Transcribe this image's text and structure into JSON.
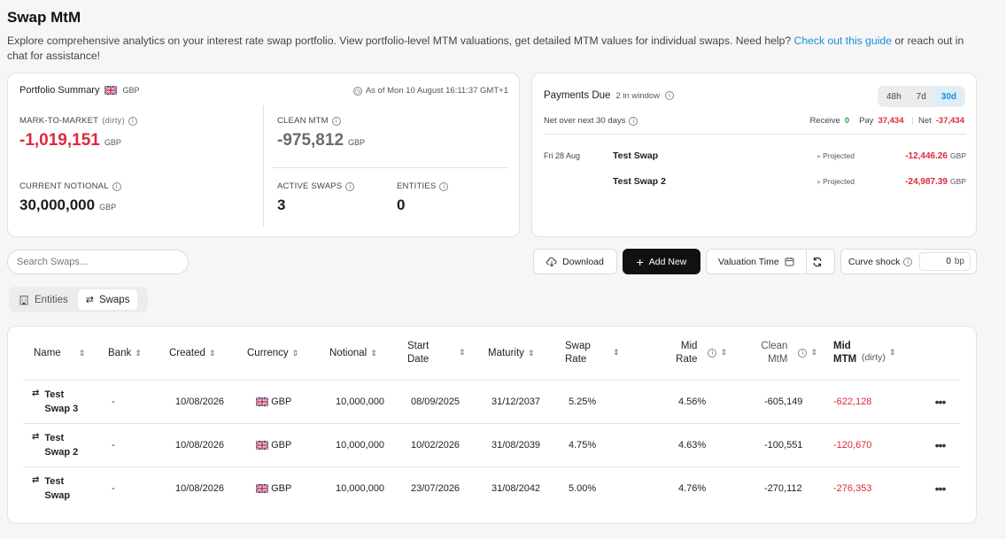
{
  "page": {
    "title": "Swap MtM",
    "desc_before": "Explore comprehensive analytics on your interest rate swap portfolio. View portfolio-level MTM valuations, get detailed MTM values for individual swaps. Need help? ",
    "desc_link": "Check out this guide",
    "desc_after": " or reach out in chat for assistance!"
  },
  "summary": {
    "title": "Portfolio Summary",
    "currency": "GBP",
    "as_of": "As of Mon 10 August 16:11:37 GMT+1",
    "mtm_label": "MARK-TO-MARKET",
    "mtm_sub": "(dirty)",
    "mtm_value": "-1,019,151",
    "clean_label": "CLEAN MTM",
    "clean_value": "-975,812",
    "notional_label": "CURRENT NOTIONAL",
    "notional_value": "30,000,000",
    "active_label": "ACTIVE SWAPS",
    "active_value": "3",
    "entities_label": "ENTITIES",
    "entities_value": "0",
    "ccy": "GBP"
  },
  "payments": {
    "title": "Payments Due",
    "window": "2 in window",
    "tabs": [
      "48h",
      "7d",
      "30d"
    ],
    "net_label": "Net over next 30 days",
    "receive_label": "Receive",
    "receive_value": "0",
    "pay_label": "Pay",
    "pay_value": "37,434",
    "net2_label": "Net",
    "net2_value": "-37,434",
    "rows": [
      {
        "date": "Fri 28 Aug",
        "name": "Test Swap",
        "status": "Projected",
        "amount": "-12,446.26",
        "ccy": "GBP"
      },
      {
        "date": "",
        "name": "Test Swap 2",
        "status": "Projected",
        "amount": "-24,987.39",
        "ccy": "GBP"
      }
    ]
  },
  "toolbar": {
    "search_placeholder": "Search Swaps...",
    "download": "Download",
    "add_new": "Add New",
    "valuation_time": "Valuation Time",
    "curve_shock": "Curve shock",
    "shock_value": "0",
    "shock_unit": "bp"
  },
  "tabs": {
    "entities": "Entities",
    "swaps": "Swaps"
  },
  "table": {
    "headers": [
      "Name",
      "Bank",
      "Created",
      "Currency",
      "Notional",
      "Start Date",
      "Maturity",
      "Swap Rate",
      "Mid Rate",
      "Clean MtM",
      "Mid MTM",
      "(dirty)"
    ],
    "rows": [
      {
        "name": "Test Swap 3",
        "bank": "-",
        "created": "10/08/2026",
        "ccy": "GBP",
        "notional": "10,000,000",
        "start": "08/09/2025",
        "maturity": "31/12/2037",
        "swap_rate": "5.25%",
        "mid_rate": "4.56%",
        "clean": "-605,149",
        "mid": "-622,128"
      },
      {
        "name": "Test Swap 2",
        "bank": "-",
        "created": "10/08/2026",
        "ccy": "GBP",
        "notional": "10,000,000",
        "start": "10/02/2026",
        "maturity": "31/08/2039",
        "swap_rate": "4.75%",
        "mid_rate": "4.63%",
        "clean": "-100,551",
        "mid": "-120,670"
      },
      {
        "name": "Test Swap",
        "bank": "-",
        "created": "10/08/2026",
        "ccy": "GBP",
        "notional": "10,000,000",
        "start": "23/07/2026",
        "maturity": "31/08/2042",
        "swap_rate": "5.00%",
        "mid_rate": "4.76%",
        "clean": "-270,112",
        "mid": "-276,353"
      }
    ]
  },
  "colors": {
    "negative": "#e0283a",
    "positive": "#1faa4a",
    "link": "#1a8fd6",
    "primary_button": "#111111"
  }
}
